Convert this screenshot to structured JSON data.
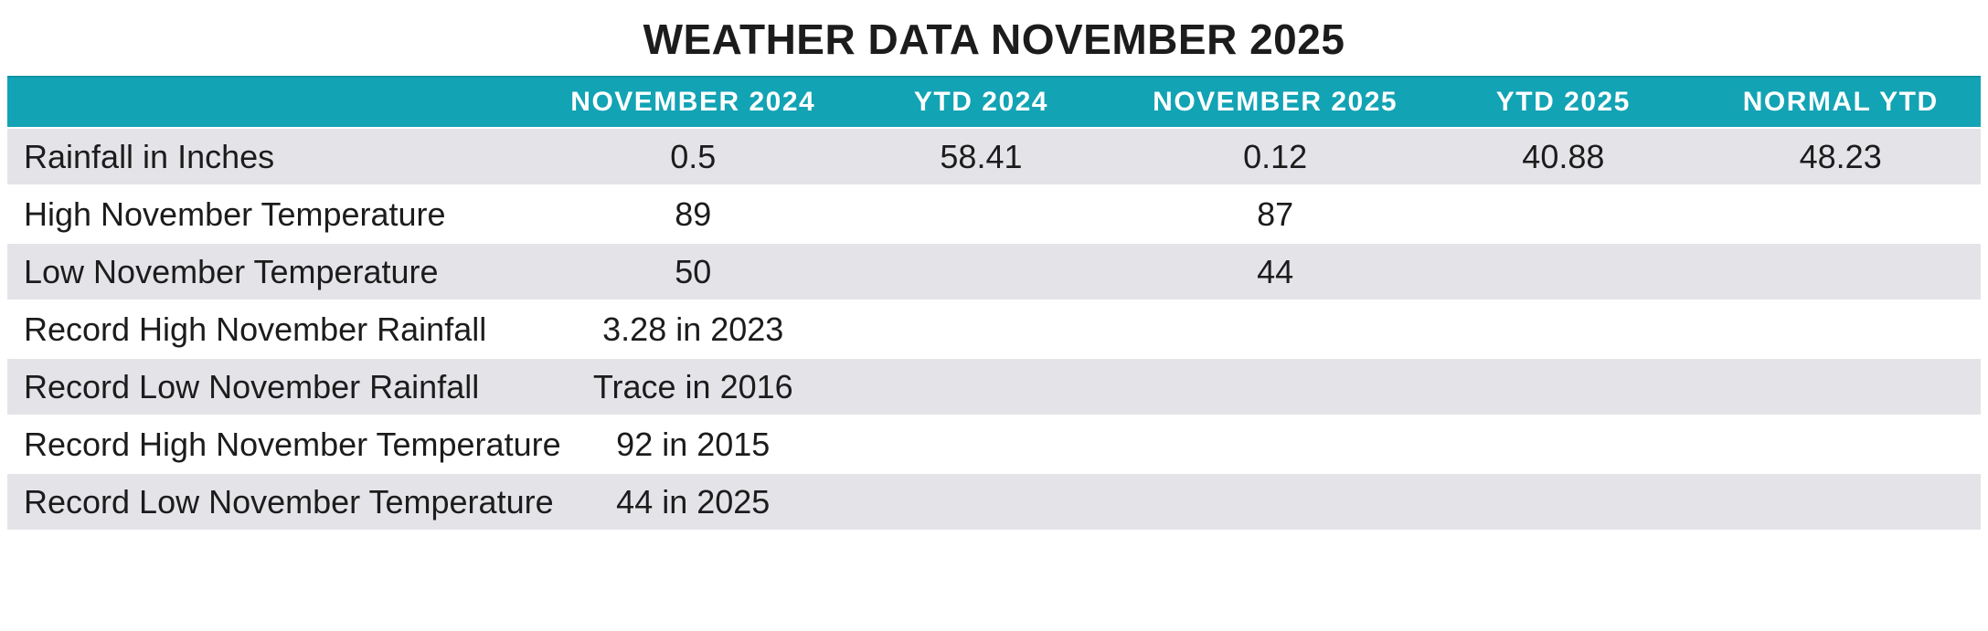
{
  "title": "WEATHER DATA NOVEMBER 2025",
  "colors": {
    "header_bg": "#12a3b4",
    "header_top_edge": "#0d93a4",
    "header_text": "#ffffff",
    "row_alt_bg": "#e4e3e8",
    "row_bg": "#ffffff",
    "text": "#1c1c1c"
  },
  "chart_data": {
    "type": "table",
    "title": "WEATHER DATA NOVEMBER 2025",
    "columns": [
      "",
      "NOVEMBER 2024",
      "YTD 2024",
      "NOVEMBER 2025",
      "YTD 2025",
      "NORMAL YTD"
    ],
    "rows": [
      {
        "label": "Rainfall in Inches",
        "values": [
          "0.5",
          "58.41",
          "0.12",
          "40.88",
          "48.23"
        ]
      },
      {
        "label": "High November Temperature",
        "values": [
          "89",
          "",
          "87",
          "",
          ""
        ]
      },
      {
        "label": "Low November Temperature",
        "values": [
          "50",
          "",
          "44",
          "",
          ""
        ]
      },
      {
        "label": "Record High November Rainfall",
        "values": [
          "3.28 in 2023",
          "",
          "",
          "",
          ""
        ]
      },
      {
        "label": "Record Low November Rainfall",
        "values": [
          "Trace in 2016",
          "",
          "",
          "",
          ""
        ]
      },
      {
        "label": "Record High November Temperature",
        "values": [
          "92 in 2015",
          "",
          "",
          "",
          ""
        ]
      },
      {
        "label": "Record Low November Temperature",
        "values": [
          "44 in 2025",
          "",
          "",
          "",
          ""
        ]
      }
    ],
    "layout": {
      "header_row_style": "solid teal band, white uppercase labels",
      "striping": "first data row shaded, alternating lavender-gray and white",
      "value_alignment": "labels left-aligned, values centered under column headers"
    }
  }
}
